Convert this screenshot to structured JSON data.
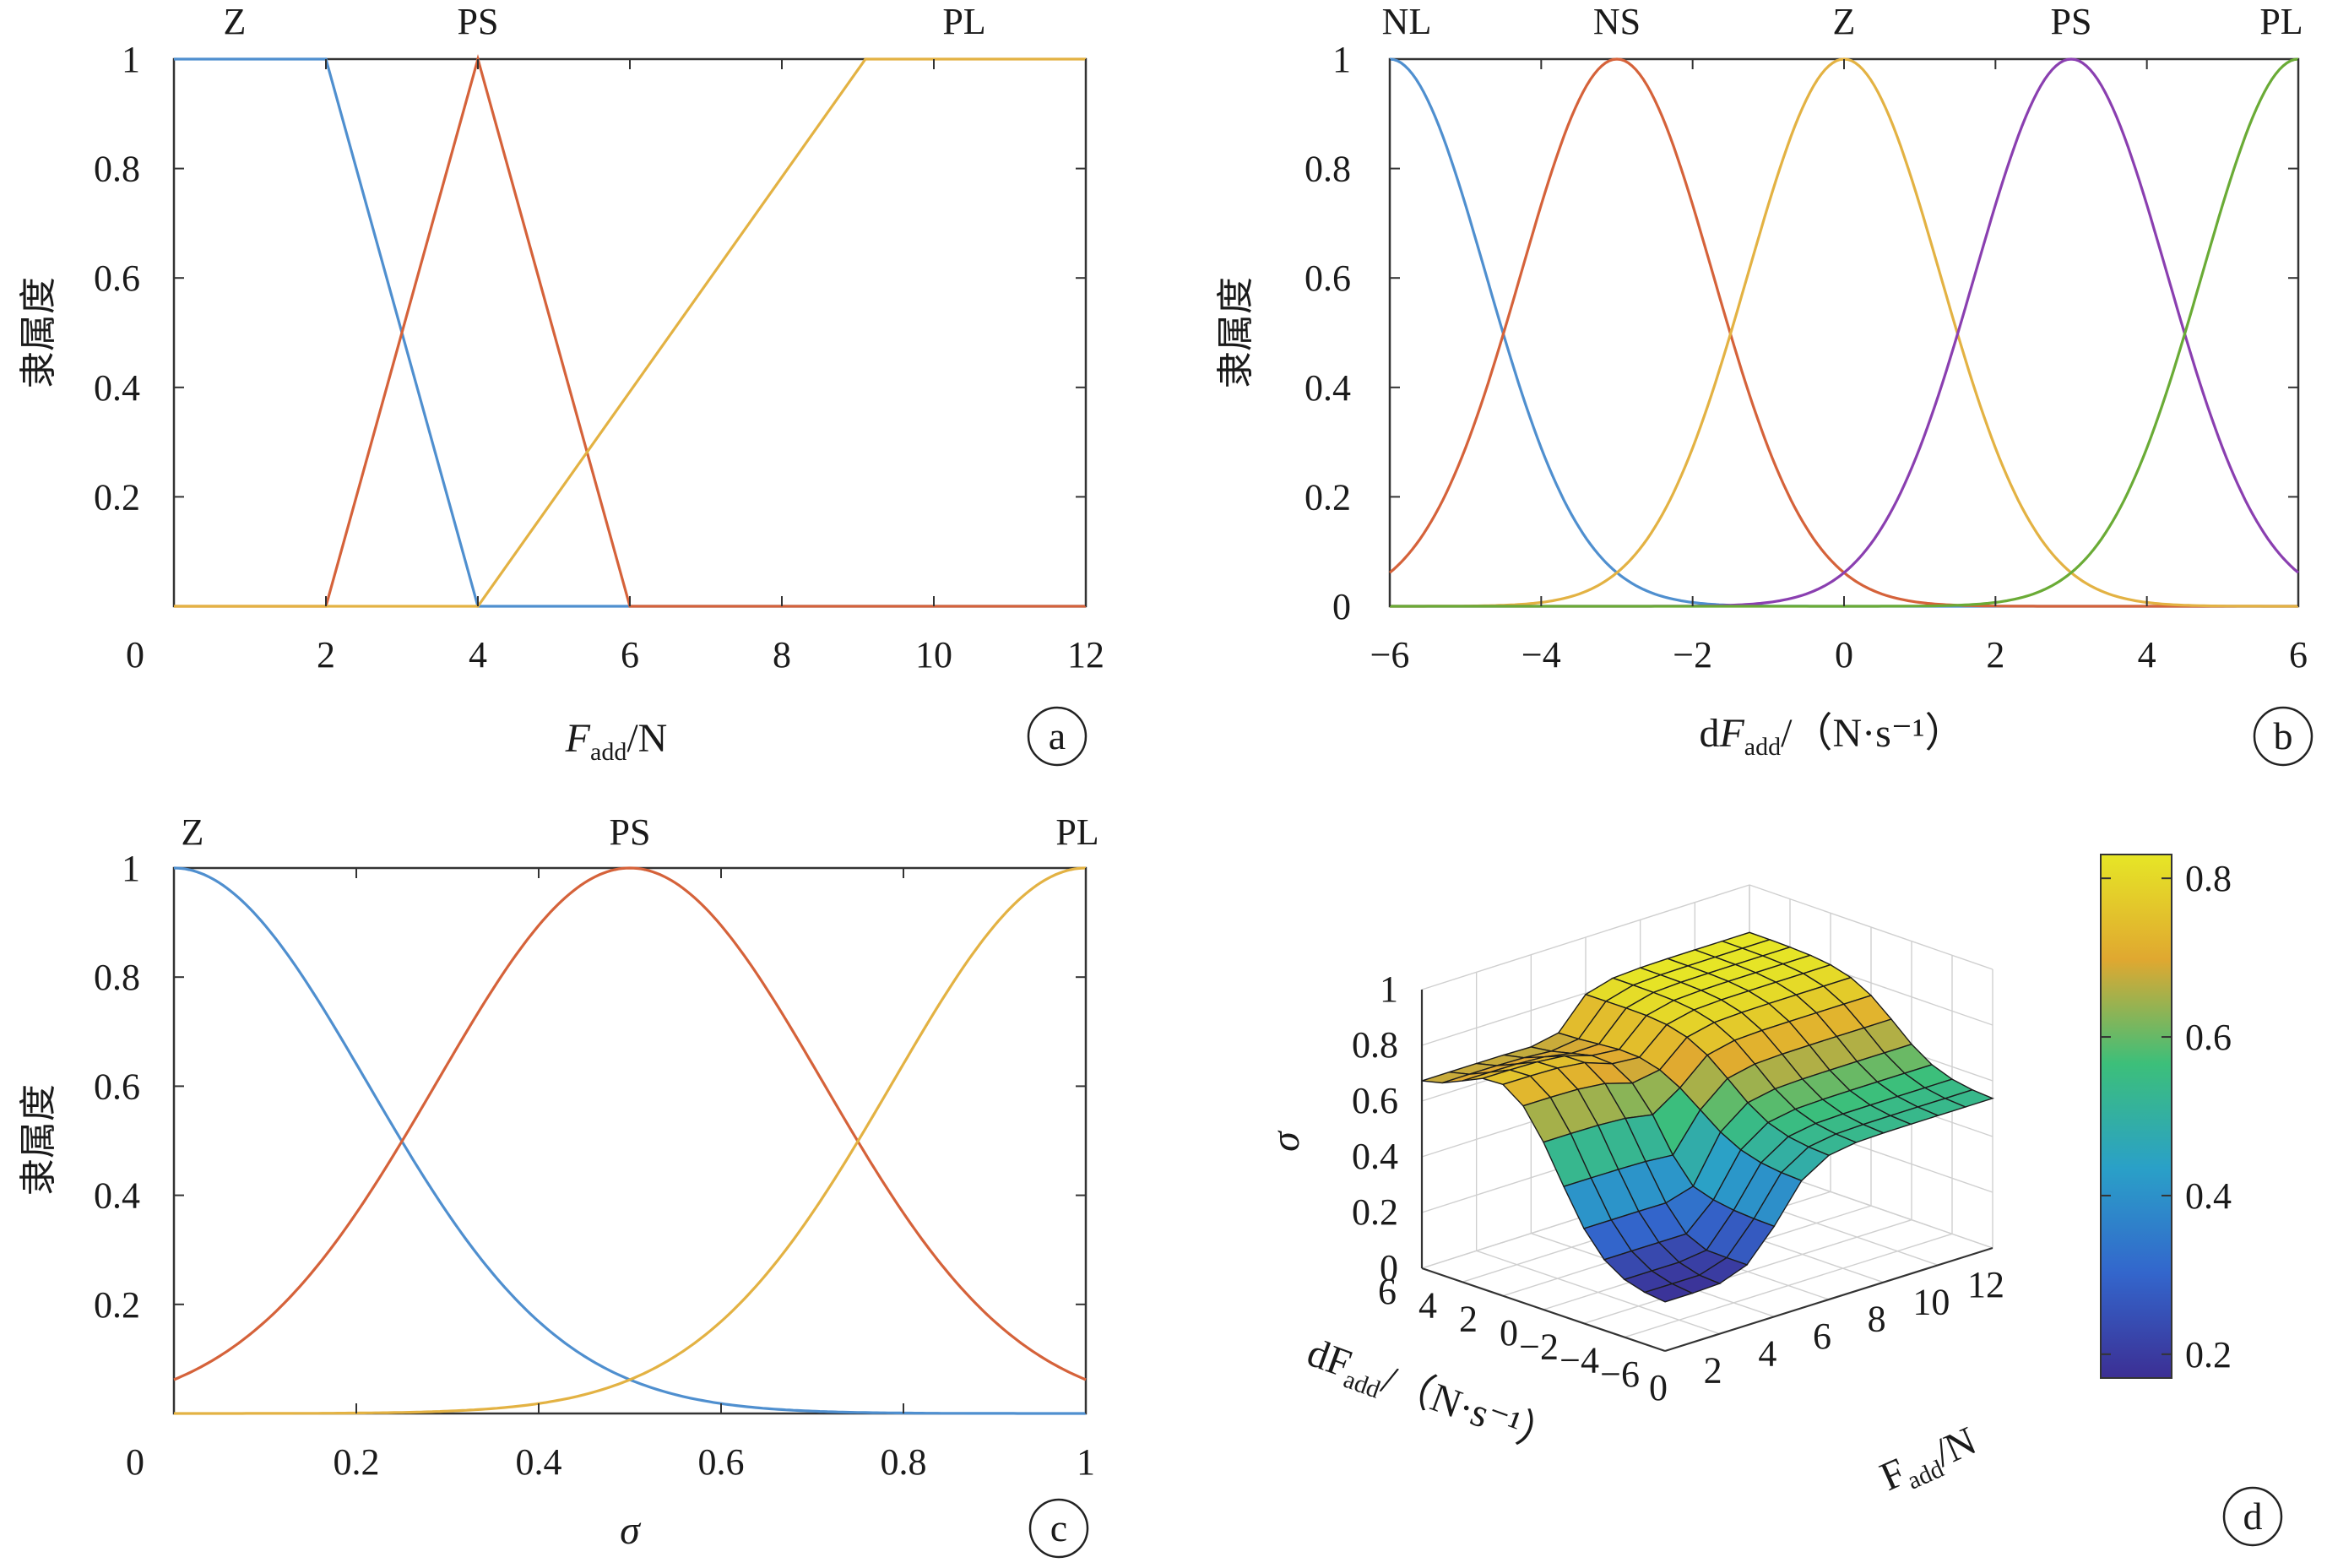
{
  "colors": {
    "blue": "#4f8fcf",
    "red": "#d5623a",
    "yellow": "#e3b243",
    "purple": "#8a3fb0",
    "green": "#6aab36"
  },
  "panels": {
    "a": {
      "letter": "a",
      "ylabel": "隶属度",
      "xlabel_main": "F",
      "xlabel_sub": "add",
      "xlabel_tail": "/N"
    },
    "b": {
      "letter": "b",
      "ylabel": "隶属度",
      "xlabel_pre": "d",
      "xlabel_main": "F",
      "xlabel_sub": "add",
      "xlabel_tail": "/（N·s⁻¹）"
    },
    "c": {
      "letter": "c",
      "ylabel": "隶属度",
      "xlabel": "σ"
    },
    "d": {
      "letter": "d",
      "zlabel": "σ",
      "xlabel_main": "F",
      "xlabel_sub": "add",
      "xlabel_tail": "/N",
      "ylabel_pre": "dF",
      "ylabel_sub": "add",
      "ylabel_tail": "/（N·s⁻¹）",
      "colorbar_ticks": [
        "0.8",
        "0.6",
        "0.4",
        "0.2"
      ]
    }
  },
  "chart_data": [
    {
      "panel": "a",
      "type": "line",
      "xlim": [
        0,
        12
      ],
      "ylim": [
        0,
        1
      ],
      "x_ticks": [
        "0",
        "2",
        "4",
        "6",
        "8",
        "10",
        "12"
      ],
      "y_ticks": [
        "0",
        "0.2",
        "0.4",
        "0.6",
        "0.8",
        "1"
      ],
      "membership_labels": [
        "Z",
        "PS",
        "PL"
      ],
      "series": [
        {
          "name": "Z",
          "shape": "trapezoid",
          "x": [
            0,
            2,
            4,
            12
          ],
          "y": [
            1,
            1,
            0,
            0
          ],
          "color": "#4f8fcf"
        },
        {
          "name": "PS",
          "shape": "triangle",
          "x": [
            0,
            2,
            4,
            6,
            12
          ],
          "y": [
            0,
            0,
            1,
            0,
            0
          ],
          "color": "#d5623a"
        },
        {
          "name": "PL",
          "shape": "trapezoid",
          "x": [
            0,
            4,
            9.1,
            12
          ],
          "y": [
            0,
            0,
            1,
            1
          ],
          "color": "#e3b243"
        }
      ]
    },
    {
      "panel": "b",
      "type": "line",
      "xlim": [
        -6,
        6
      ],
      "ylim": [
        0,
        1
      ],
      "x_ticks": [
        "−6",
        "−4",
        "−2",
        "0",
        "2",
        "4",
        "6"
      ],
      "y_ticks": [
        "0",
        "0.2",
        "0.4",
        "0.6",
        "0.8",
        "1"
      ],
      "membership_labels": [
        "NL",
        "NS",
        "Z",
        "PS",
        "PL"
      ],
      "series": [
        {
          "name": "NL",
          "shape": "gaussian",
          "center": -6,
          "sigma": 1.27,
          "color": "#4f8fcf"
        },
        {
          "name": "NS",
          "shape": "gaussian",
          "center": -3,
          "sigma": 1.27,
          "color": "#d5623a"
        },
        {
          "name": "Z",
          "shape": "gaussian",
          "center": 0,
          "sigma": 1.27,
          "color": "#e3b243"
        },
        {
          "name": "PS",
          "shape": "gaussian",
          "center": 3,
          "sigma": 1.27,
          "color": "#8a3fb0"
        },
        {
          "name": "PL",
          "shape": "gaussian",
          "center": 6,
          "sigma": 1.27,
          "color": "#6aab36"
        }
      ]
    },
    {
      "panel": "c",
      "type": "line",
      "xlim": [
        0,
        1
      ],
      "ylim": [
        0,
        1
      ],
      "x_ticks": [
        "0",
        "0.2",
        "0.4",
        "0.6",
        "0.8",
        "1"
      ],
      "y_ticks": [
        "0",
        "0.2",
        "0.4",
        "0.6",
        "0.8",
        "1"
      ],
      "membership_labels": [
        "Z",
        "PS",
        "PL"
      ],
      "series": [
        {
          "name": "Z",
          "shape": "gaussian",
          "center": 0,
          "sigma": 0.212,
          "color": "#4f8fcf"
        },
        {
          "name": "PS",
          "shape": "gaussian",
          "center": 0.5,
          "sigma": 0.212,
          "color": "#d5623a"
        },
        {
          "name": "PL",
          "shape": "gaussian",
          "center": 1,
          "sigma": 0.212,
          "color": "#e3b243"
        }
      ]
    },
    {
      "panel": "d",
      "type": "surface",
      "x_name": "Fadd",
      "y_name": "dFadd",
      "xlim": [
        0,
        12
      ],
      "ylim": [
        -6,
        6
      ],
      "zlim": [
        0,
        1
      ],
      "x_ticks": [
        "0",
        "2",
        "4",
        "6",
        "8",
        "10",
        "12"
      ],
      "y_ticks": [
        "6",
        "4",
        "2",
        "0",
        "−2",
        "−4",
        "−6"
      ],
      "z_ticks": [
        "0",
        "0.2",
        "0.4",
        "0.6",
        "0.8",
        "1"
      ],
      "colorbar_range": [
        0.17,
        0.83
      ],
      "surface_description": "sigma rises from about 0.17 at low Fadd / negative dFadd to about 0.83 at high Fadd and positive dFadd"
    }
  ]
}
